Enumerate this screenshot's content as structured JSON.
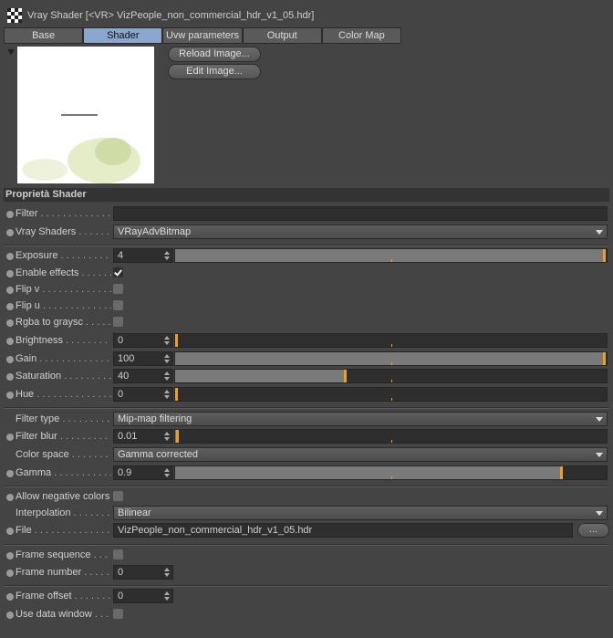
{
  "window": {
    "title": "Vray Shader [<VR> VizPeople_non_commercial_hdr_v1_05.hdr]"
  },
  "tabs": [
    {
      "label": "Base",
      "active": false
    },
    {
      "label": "Shader",
      "active": true
    },
    {
      "label": "Uvw parameters",
      "active": false
    },
    {
      "label": "Output",
      "active": false
    },
    {
      "label": "Color Map",
      "active": false
    }
  ],
  "buttons": {
    "reload": "Reload Image...",
    "edit": "Edit Image..."
  },
  "section": {
    "title": "Proprietà Shader"
  },
  "accent": "#f0a020",
  "rows": [
    {
      "label": "Filter",
      "type": "text",
      "value": ""
    },
    {
      "label": "Vray Shaders",
      "type": "combo",
      "value": "VRayAdvBitmap"
    },
    {
      "type": "sep"
    },
    {
      "label": "Exposure",
      "type": "slider",
      "value": "4",
      "fill": 1.0
    },
    {
      "label": "Enable effects",
      "type": "check",
      "checked": true
    },
    {
      "label": "Flip v",
      "type": "check",
      "checked": false
    },
    {
      "label": "Flip u",
      "type": "check",
      "checked": false
    },
    {
      "label": "Rgba to graysc",
      "type": "check",
      "checked": false
    },
    {
      "label": "Brightness",
      "type": "slider",
      "value": "0",
      "fill": 0
    },
    {
      "label": "Gain",
      "type": "slider",
      "value": "100",
      "fill": 1.0
    },
    {
      "label": "Saturation",
      "type": "slider",
      "value": "40",
      "fill": 0.4
    },
    {
      "label": "Hue",
      "type": "slider",
      "value": "0",
      "fill": 0
    },
    {
      "type": "sep"
    },
    {
      "label": "Filter type",
      "type": "combo",
      "value": "Mip-map filtering",
      "nodot": true
    },
    {
      "label": "Filter blur",
      "type": "slider",
      "value": "0.01",
      "fill": 0.01
    },
    {
      "label": "Color space",
      "type": "combo",
      "value": "Gamma corrected",
      "nodot": true
    },
    {
      "label": "Gamma",
      "type": "slider",
      "value": "0.9",
      "fill": 0.9
    },
    {
      "type": "sep"
    },
    {
      "label": "Allow negative colors",
      "type": "check",
      "checked": false,
      "wide": true
    },
    {
      "label": "Interpolation",
      "type": "combo",
      "value": "Bilinear",
      "nodot": true
    },
    {
      "label": "File",
      "type": "file",
      "value": "VizPeople_non_commercial_hdr_v1_05.hdr",
      "button": "..."
    },
    {
      "type": "sep"
    },
    {
      "label": "Frame sequence",
      "type": "check",
      "checked": false
    },
    {
      "label": "Frame number",
      "type": "num",
      "value": "0"
    },
    {
      "type": "sep"
    },
    {
      "label": "Frame offset",
      "type": "num",
      "value": "0"
    },
    {
      "label": "Use data window",
      "type": "check",
      "checked": false
    }
  ]
}
